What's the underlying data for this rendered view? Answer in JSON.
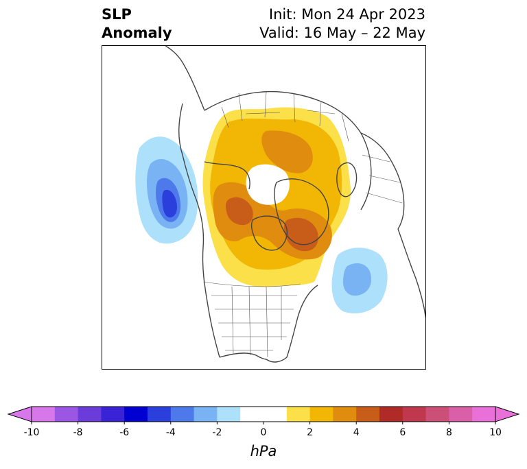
{
  "title": {
    "left_line1": "SLP",
    "left_line2": "Anomaly",
    "init": "Init: Mon 24 Apr 2023",
    "valid": "Valid: 16 May – 22 May"
  },
  "colorbar": {
    "units": "hPa",
    "tick_labels": [
      "-10",
      "-8",
      "-6",
      "-4",
      "-2",
      "0",
      "2",
      "4",
      "6",
      "8",
      "10"
    ],
    "levels": [
      -10,
      -9,
      -8,
      -7,
      -6,
      -5,
      -4,
      -3,
      -2,
      -1,
      1,
      2,
      3,
      4,
      5,
      6,
      7,
      8,
      9,
      10
    ],
    "colors": [
      "#d877ea",
      "#9b56e3",
      "#6a3cd9",
      "#3a23d6",
      "#0000d0",
      "#2a3fdc",
      "#4d79ea",
      "#79b3f4",
      "#ade0fb",
      "#ffffff",
      "#fbe04a",
      "#f2b705",
      "#e08c0e",
      "#c85d1a",
      "#b02a28",
      "#c0384d",
      "#cc4f78",
      "#d85fa8",
      "#e870d8"
    ],
    "extend": "both"
  },
  "colors": {
    "pos1": "#fbe04a",
    "pos2": "#f2b705",
    "pos3": "#e08c0e",
    "pos4": "#c85d1a",
    "neg1": "#ade0fb",
    "neg2": "#79b3f4",
    "neg3": "#4d79ea",
    "neg4": "#2a3fdc",
    "coast": "#444444"
  }
}
